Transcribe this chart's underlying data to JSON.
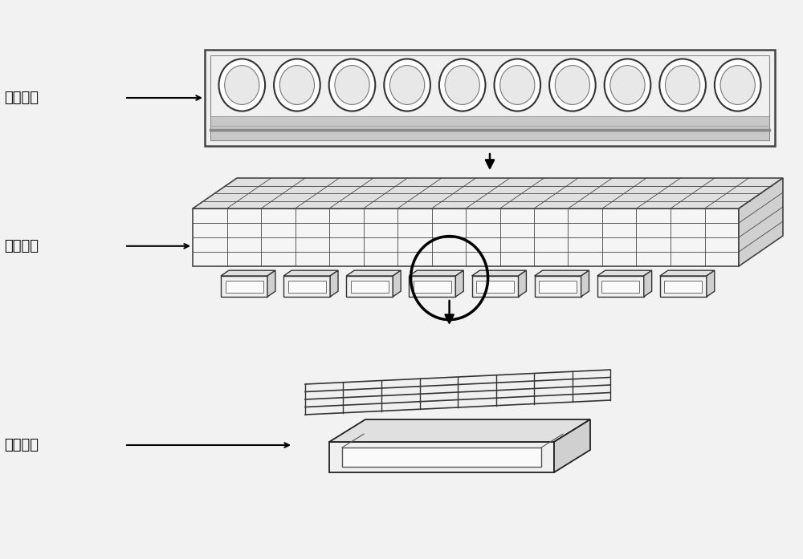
{
  "bg_color": "#f2f2f2",
  "label1": "静压滑座",
  "label2": "简化模型",
  "label3": "静压油垫",
  "line_color": "#000000",
  "num_circles": 10,
  "grid_rows": 4,
  "grid_cols": 16,
  "num_pads": 8
}
